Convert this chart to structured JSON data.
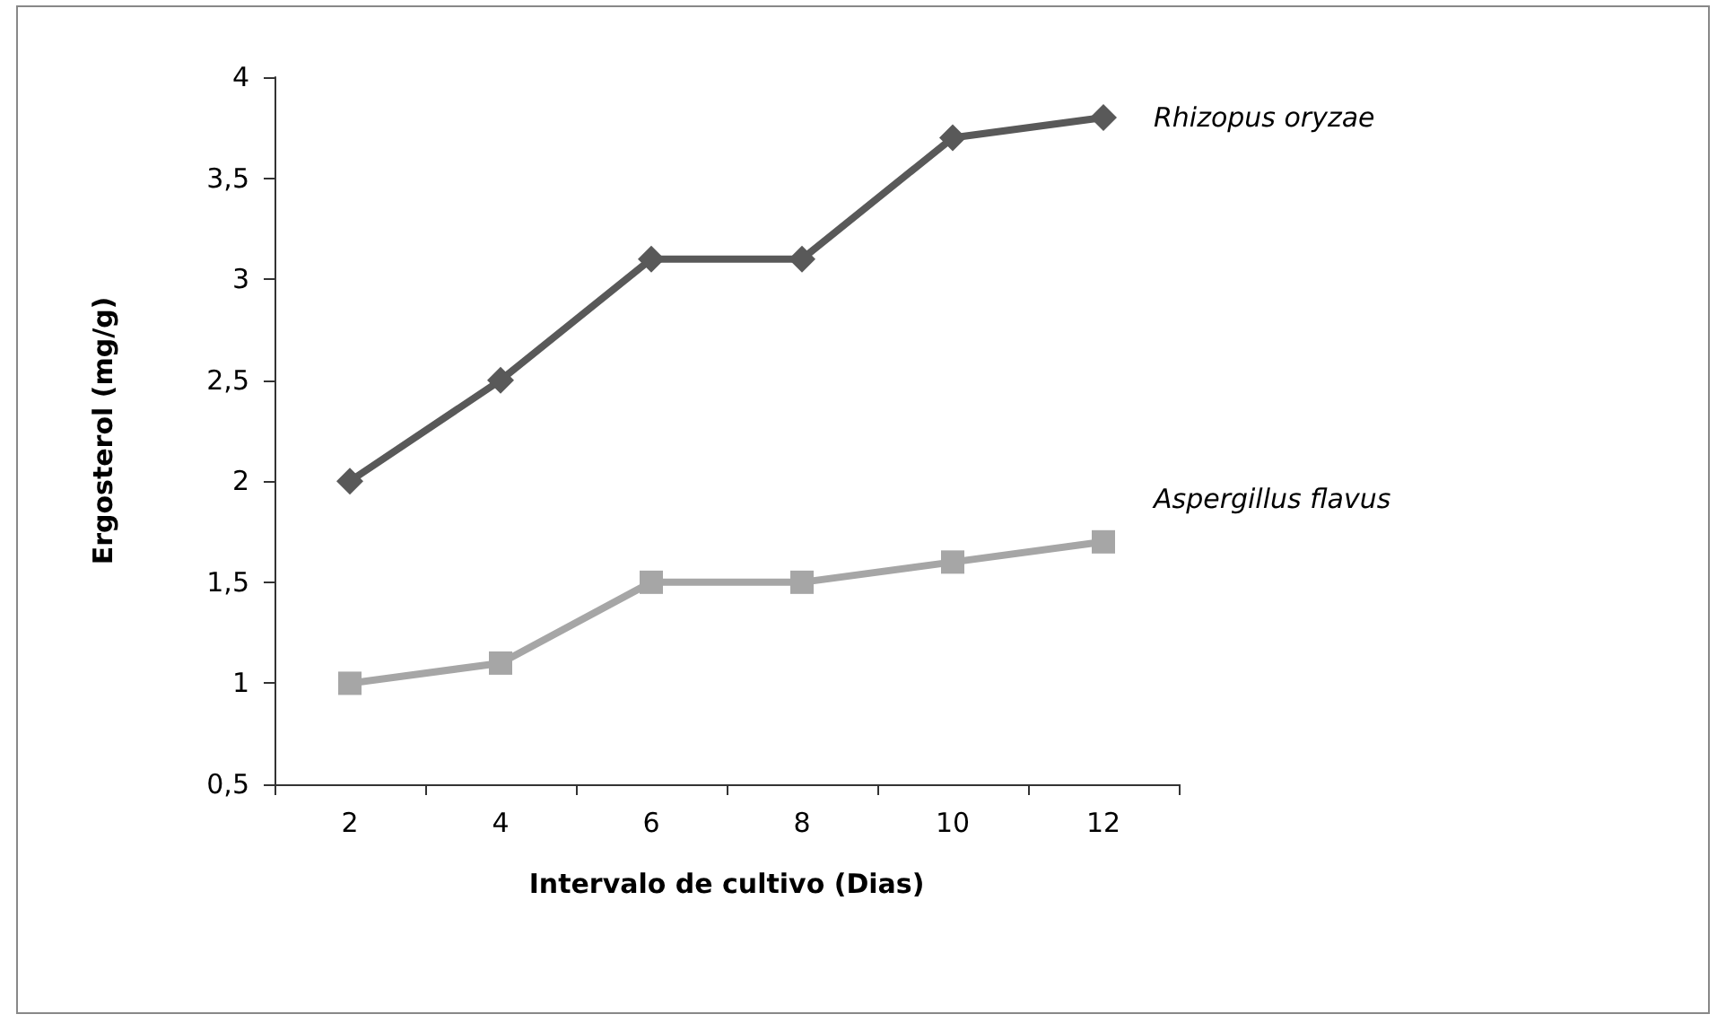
{
  "chart_data": {
    "type": "line",
    "xlabel": "Intervalo de cultivo (Dias)",
    "ylabel": "Ergosterol (mg/g)",
    "categories": [
      "2",
      "4",
      "6",
      "8",
      "10",
      "12"
    ],
    "series": [
      {
        "name": "Rhizopus oryzae",
        "color": "#595959",
        "marker": "diamond",
        "values": [
          2,
          2.5,
          3.1,
          3.1,
          3.7,
          3.8
        ]
      },
      {
        "name": "Aspergillus flavus",
        "color": "#a6a6a6",
        "marker": "square",
        "values": [
          1,
          1.1,
          1.5,
          1.5,
          1.6,
          1.7
        ]
      }
    ],
    "ylim": [
      0.5,
      4
    ],
    "yticks": [
      {
        "value": 0.5,
        "label": "0,5"
      },
      1,
      {
        "value": 1.5,
        "label": "1,5"
      },
      2,
      {
        "value": 2.5,
        "label": "2,5"
      },
      3,
      {
        "value": 3.5,
        "label": "3,5"
      },
      4
    ],
    "grid": false,
    "legend": false,
    "line_style": "solid"
  }
}
